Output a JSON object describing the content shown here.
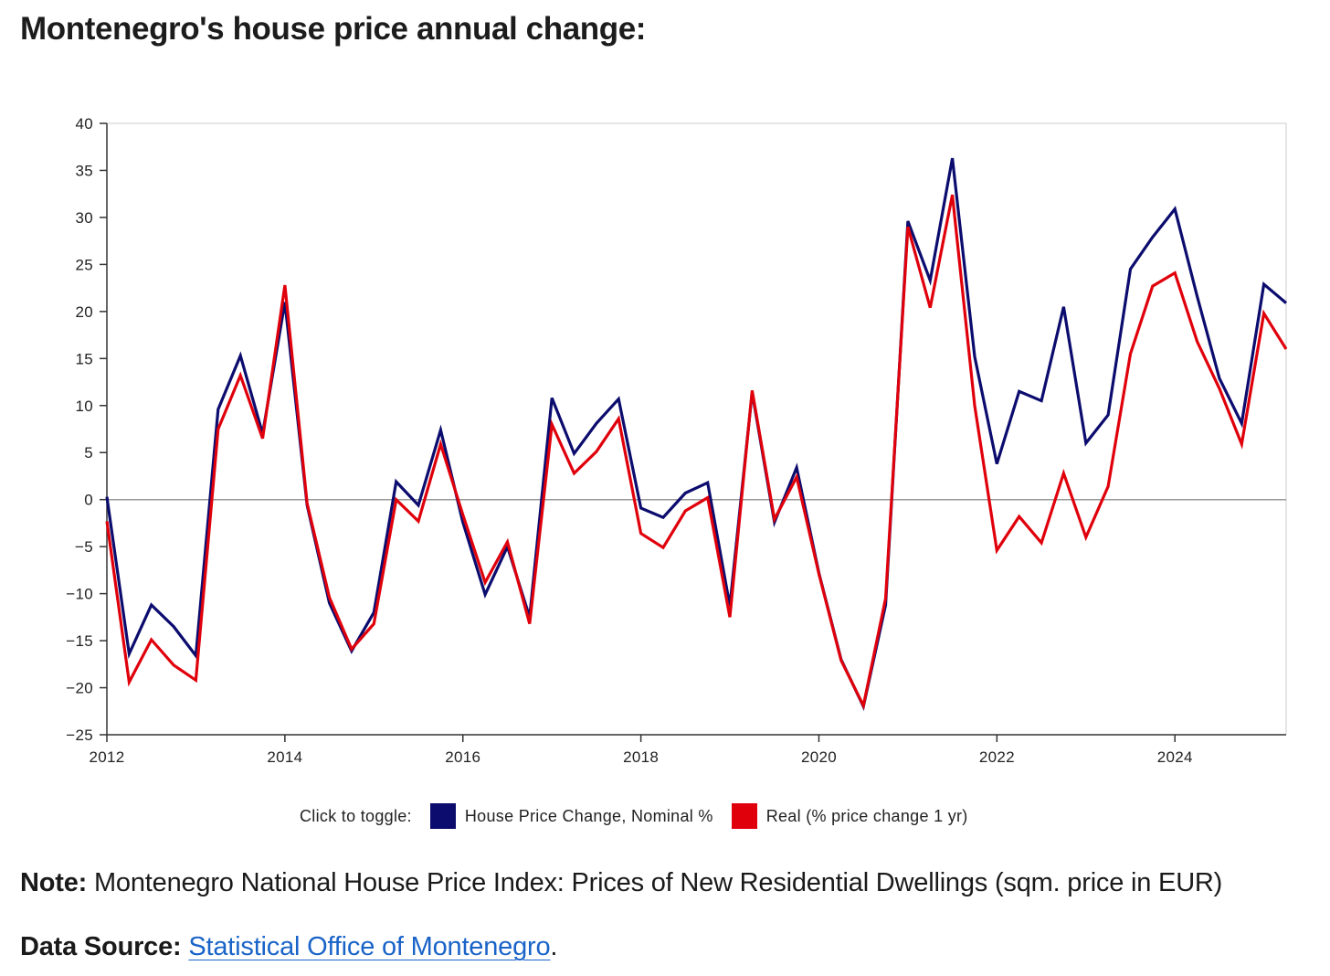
{
  "page": {
    "title": "Montenegro's house price annual change:",
    "note_label": "Note:",
    "note_text": "Montenegro National House Price Index: Prices of New Residential Dwellings (sqm. price in EUR)",
    "source_label": "Data Source:",
    "source_link": "Statistical Office of Montenegro",
    "source_end": "."
  },
  "legend": {
    "prefix": "Click to toggle:",
    "nominal_label": "House Price Change, Nominal %",
    "real_label": "Real (% price change 1 yr)"
  },
  "colors": {
    "nominal": "#0b0c6e",
    "real": "#e0000b",
    "zero_line": "#999999",
    "axis": "#333333",
    "frame": "#dddddd"
  },
  "chart_data": {
    "type": "line",
    "title": "Montenegro's house price annual change:",
    "xlabel": "",
    "ylabel": "",
    "xlim": [
      2012,
      2025.25
    ],
    "ylim": [
      -25,
      40
    ],
    "x_ticks": [
      2012,
      2014,
      2016,
      2018,
      2020,
      2022,
      2024
    ],
    "y_ticks": [
      40,
      35,
      30,
      25,
      20,
      15,
      10,
      5,
      0,
      -5,
      -10,
      -15,
      -20,
      -25
    ],
    "x": [
      2012,
      2012.25,
      2012.5,
      2012.75,
      2013,
      2013.25,
      2013.5,
      2013.75,
      2014,
      2014.25,
      2014.5,
      2014.75,
      2015,
      2015.25,
      2015.5,
      2015.75,
      2016,
      2016.25,
      2016.5,
      2016.75,
      2017,
      2017.25,
      2017.5,
      2017.75,
      2018,
      2018.25,
      2018.5,
      2018.75,
      2019,
      2019.25,
      2019.5,
      2019.75,
      2020,
      2020.25,
      2020.5,
      2020.75,
      2021,
      2021.25,
      2021.5,
      2021.75,
      2022,
      2022.25,
      2022.5,
      2022.75,
      2023,
      2023.25,
      2023.5,
      2023.75,
      2024,
      2024.25,
      2024.5,
      2024.75,
      2025,
      2025.25
    ],
    "series": [
      {
        "name": "House Price Change, Nominal %",
        "color": "#0b0c6e",
        "values": [
          0.3,
          -16.4,
          -11.2,
          -13.5,
          -16.6,
          9.6,
          15.3,
          7.0,
          21.0,
          -0.6,
          -11.0,
          -16.1,
          -12.0,
          1.9,
          -0.6,
          7.4,
          -2.4,
          -10.1,
          -5.0,
          -12.5,
          10.8,
          4.9,
          8.1,
          10.7,
          -0.9,
          -1.9,
          0.7,
          1.8,
          -11.3,
          11.4,
          -2.4,
          3.4,
          -7.8,
          -17.0,
          -22.0,
          -11.2,
          29.6,
          23.3,
          36.3,
          15.2,
          3.8,
          11.5,
          10.5,
          20.5,
          6.0,
          9.0,
          24.5,
          27.9,
          30.9,
          21.6,
          12.9,
          8.1,
          22.9,
          20.9
        ]
      },
      {
        "name": "Real (% price change 1 yr)",
        "color": "#e0000b",
        "values": [
          -2.3,
          -19.4,
          -14.9,
          -17.6,
          -19.2,
          7.5,
          13.2,
          6.5,
          22.8,
          -0.4,
          -10.4,
          -15.9,
          -13.2,
          0.0,
          -2.3,
          5.9,
          -1.6,
          -8.8,
          -4.5,
          -13.2,
          8.0,
          2.8,
          5.1,
          8.6,
          -3.6,
          -5.1,
          -1.2,
          0.2,
          -12.5,
          11.6,
          -2.1,
          2.4,
          -7.9,
          -17.1,
          -21.9,
          -10.5,
          29.0,
          20.4,
          32.4,
          10.0,
          -5.4,
          -1.8,
          -4.6,
          2.8,
          -4.0,
          1.4,
          15.5,
          22.7,
          24.1,
          16.8,
          11.8,
          5.9,
          19.8,
          16.0
        ]
      }
    ]
  }
}
